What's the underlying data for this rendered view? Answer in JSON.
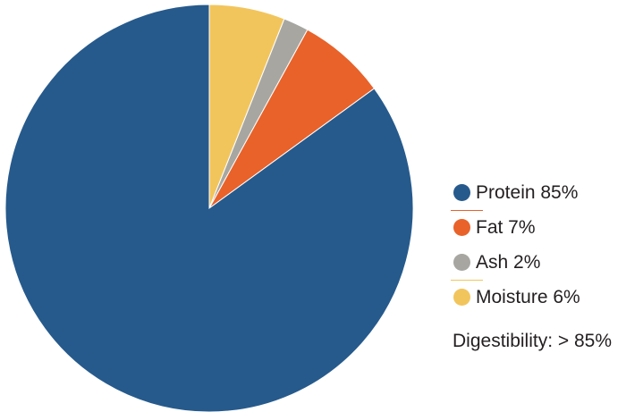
{
  "chart_data": {
    "type": "pie",
    "slices": [
      {
        "label": "Protein",
        "value": 85,
        "color": "#265a8c"
      },
      {
        "label": "Fat",
        "value": 7,
        "color": "#e8622a"
      },
      {
        "label": "Ash",
        "value": 2,
        "color": "#a7a6a1"
      },
      {
        "label": "Moisture",
        "value": 6,
        "color": "#f2c55c"
      }
    ],
    "legend": [
      {
        "text": "Protein 85%",
        "color": "#265a8c"
      },
      {
        "text": "Fat 7%",
        "color": "#e8622a"
      },
      {
        "text": "Ash 2%",
        "color": "#a7a6a1"
      },
      {
        "text": "Moisture 6%",
        "color": "#f2c55c"
      }
    ],
    "legend_position": "right",
    "separator_colors": [
      "#e8622a",
      "#f2c55c"
    ],
    "annotation": "Digestibility: > 85%"
  }
}
